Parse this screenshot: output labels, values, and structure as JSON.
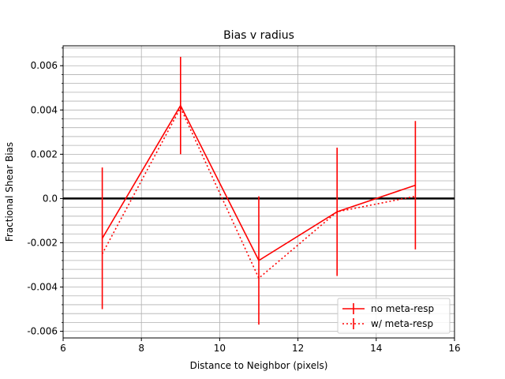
{
  "chart_data": {
    "type": "line",
    "title": "Bias v radius",
    "xlabel": "Distance to Neighbor (pixels)",
    "ylabel": "Fractional Shear Bias",
    "xlim": [
      6,
      16
    ],
    "ylim": [
      -0.0063,
      0.0069
    ],
    "x_ticks": [
      6,
      8,
      10,
      12,
      14,
      16
    ],
    "x_tick_labels": [
      "6",
      "8",
      "10",
      "12",
      "14",
      "16"
    ],
    "y_ticks": [
      0.006,
      0.004,
      0.002,
      0.0,
      -0.002,
      -0.004,
      -0.006
    ],
    "y_tick_labels": [
      "0.006",
      "0.004",
      "0.002",
      "0.0",
      "-0.002",
      "-0.004",
      "-0.006"
    ],
    "y_minor_step": 0.0004,
    "grid": true,
    "reference_line_y": 0.0,
    "legend_position": "lower-right",
    "color": "#ff0000",
    "series": [
      {
        "name": "no meta-resp",
        "style": "solid",
        "x": [
          7,
          9,
          11,
          13,
          15
        ],
        "y": [
          -0.0018,
          0.0042,
          -0.0028,
          -0.0006,
          0.0006
        ],
        "yerr": [
          0.0032,
          0.0022,
          0.0029,
          0.0029,
          0.0029
        ]
      },
      {
        "name": "w/ meta-resp",
        "style": "dotted",
        "x": [
          7,
          9,
          11,
          13,
          15
        ],
        "y": [
          -0.0025,
          0.0041,
          -0.0036,
          -0.0006,
          0.0001
        ],
        "yerr": []
      }
    ]
  }
}
